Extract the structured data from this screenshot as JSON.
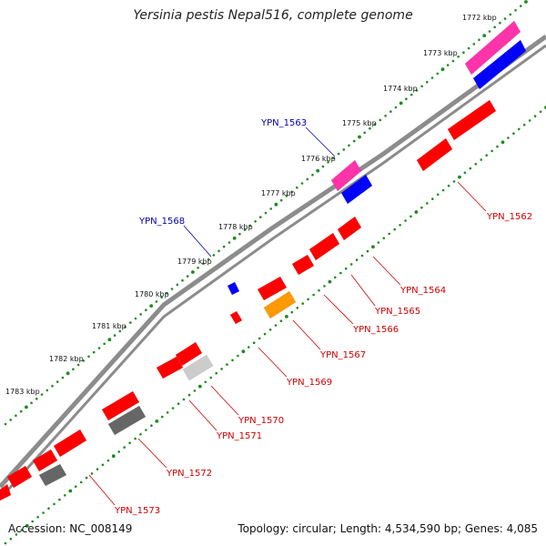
{
  "title": "Yersinia pestis Nepal516, complete genome",
  "footer": {
    "accession": "Accession: NC_008149",
    "summary": "Topology: circular; Length: 4,534,590 bp; Genes: 4,085"
  },
  "colors": {
    "backbone": "#8c8c8c",
    "tick": "#1f8a1f",
    "cds": "#ff0000",
    "cds_dark": "#b00000",
    "rna": "#0000ff",
    "pink": "#ff33aa",
    "orange": "#ff9900",
    "grey": "#666666",
    "light_grey": "#cccccc",
    "label_red": "#cc0000",
    "label_blue": "#0000aa"
  },
  "map": {
    "ticks": [
      "1772 kbp",
      "1773 kbp",
      "1774 kbp",
      "1775 kbp",
      "1776 kbp",
      "1777 kbp",
      "1778 kbp",
      "1779 kbp",
      "1780 kbp",
      "1781 kbp",
      "1782 kbp",
      "1783 kbp"
    ],
    "labels_outer": [
      {
        "id": "YPN_1563",
        "text": "YPN_1563"
      },
      {
        "id": "YPN_1568",
        "text": "YPN_1568"
      }
    ],
    "labels_inner": [
      {
        "id": "YPN_1562",
        "text": "YPN_1562"
      },
      {
        "id": "YPN_1564",
        "text": "YPN_1564"
      },
      {
        "id": "YPN_1565",
        "text": "YPN_1565"
      },
      {
        "id": "YPN_1566",
        "text": "YPN_1566"
      },
      {
        "id": "YPN_1567",
        "text": "YPN_1567"
      },
      {
        "id": "YPN_1569",
        "text": "YPN_1569"
      },
      {
        "id": "YPN_1570",
        "text": "YPN_1570"
      },
      {
        "id": "YPN_1571",
        "text": "YPN_1571"
      },
      {
        "id": "YPN_1572",
        "text": "YPN_1572"
      },
      {
        "id": "YPN_1573",
        "text": "YPN_1573"
      }
    ]
  }
}
